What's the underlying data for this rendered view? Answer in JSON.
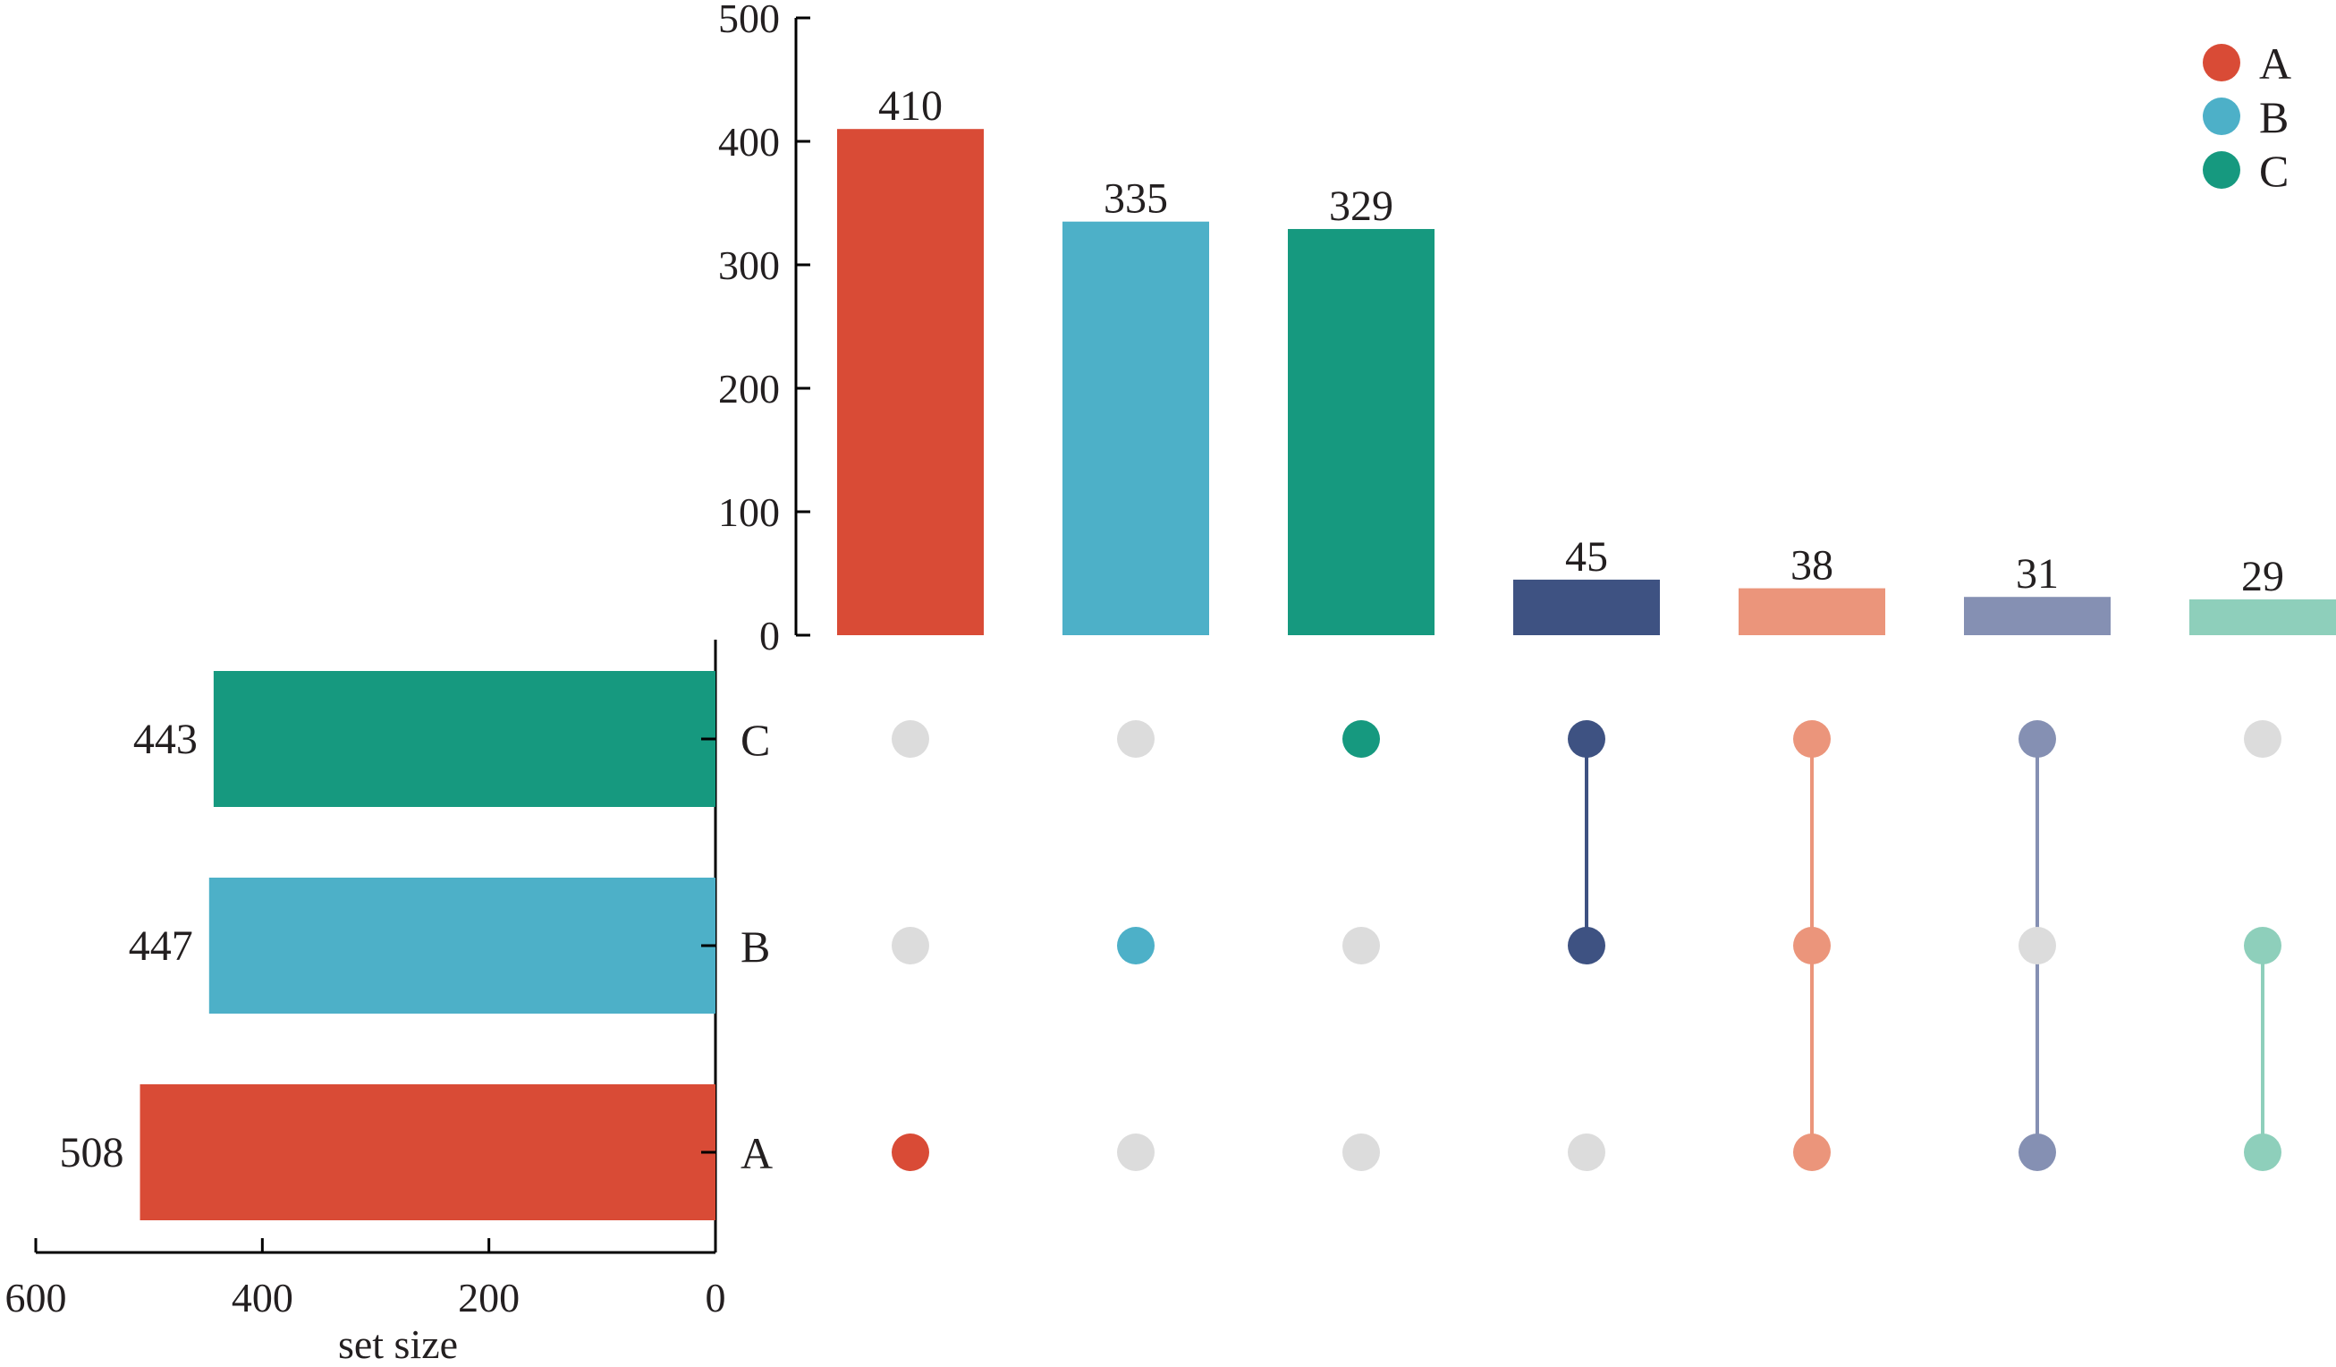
{
  "chart_data": {
    "type": "upset",
    "sets": [
      {
        "name": "A",
        "size": 508,
        "color": "#d94b36"
      },
      {
        "name": "B",
        "size": 447,
        "color": "#4db0c8"
      },
      {
        "name": "C",
        "size": 443,
        "color": "#16997f"
      }
    ],
    "set_row_order": [
      "C",
      "B",
      "A"
    ],
    "intersections": [
      {
        "sets": [
          "A"
        ],
        "value": 410,
        "color": "#d94b36"
      },
      {
        "sets": [
          "B"
        ],
        "value": 335,
        "color": "#4db0c8"
      },
      {
        "sets": [
          "C"
        ],
        "value": 329,
        "color": "#16997f"
      },
      {
        "sets": [
          "B",
          "C"
        ],
        "value": 45,
        "color": "#3e5282"
      },
      {
        "sets": [
          "A",
          "B",
          "C"
        ],
        "value": 38,
        "color": "#eb957b"
      },
      {
        "sets": [
          "A",
          "C"
        ],
        "value": 31,
        "color": "#8590b3"
      },
      {
        "sets": [
          "A",
          "B"
        ],
        "value": 29,
        "color": "#8ecfbb"
      }
    ],
    "intersection_axis": {
      "ylim": [
        0,
        500
      ],
      "ticks": [
        "0",
        "100",
        "200",
        "300",
        "400",
        "500"
      ]
    },
    "set_size_axis": {
      "label": "set size",
      "xlim": [
        600,
        0
      ],
      "ticks": [
        "600",
        "400",
        "200",
        "0"
      ]
    },
    "legend": {
      "position": "top-right",
      "items": [
        {
          "label": "A",
          "color": "#d94b36"
        },
        {
          "label": "B",
          "color": "#4db0c8"
        },
        {
          "label": "C",
          "color": "#16997f"
        }
      ]
    },
    "inactive_dot_color": "#dcdcdc",
    "grid": false
  }
}
